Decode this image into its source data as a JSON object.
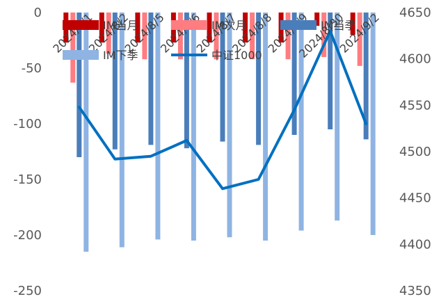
{
  "chart_data": {
    "type": "bar",
    "categories": [
      "2024/8/1",
      "2024/8/2",
      "2024/8/5",
      "2024/8/6",
      "2024/8/7",
      "2024/8/8",
      "2024/8/9",
      "2024/8/30",
      "2024/9/2"
    ],
    "y_left": {
      "ylim": [
        -250,
        0
      ],
      "ticks": [
        0,
        -50,
        -100,
        -150,
        -200,
        -250
      ],
      "tick_labels": [
        "0",
        "-50",
        "-100",
        "-150",
        "-200",
        "-250"
      ]
    },
    "y_right": {
      "ylim": [
        4350,
        4650
      ],
      "ticks": [
        4650,
        4600,
        4550,
        4500,
        4450,
        4400,
        4350
      ],
      "tick_labels": [
        "4650",
        "4600",
        "4550",
        "4500",
        "4450",
        "4400",
        "4350"
      ]
    },
    "series": [
      {
        "name": "IM当月",
        "kind": "bar",
        "axis": "left",
        "color": "#c00000",
        "values": [
          -27,
          -27,
          -27,
          -27,
          -27,
          -27,
          -27,
          -12,
          -20
        ]
      },
      {
        "name": "IM次月",
        "kind": "bar",
        "axis": "left",
        "color": "#ff7c80",
        "values": [
          -63,
          -37,
          -42,
          -42,
          -42,
          -42,
          -42,
          -40,
          -48
        ]
      },
      {
        "name": "IM当季",
        "kind": "bar",
        "axis": "left",
        "color": "#4a7ebb",
        "values": [
          -130,
          -123,
          -119,
          -122,
          -116,
          -119,
          -110,
          -105,
          -114
        ]
      },
      {
        "name": "IM下季",
        "kind": "bar",
        "axis": "left",
        "color": "#8fb4e3",
        "values": [
          -215,
          -211,
          -204,
          -205,
          -202,
          -205,
          -196,
          -187,
          -200
        ]
      },
      {
        "name": "中证1000",
        "kind": "line",
        "axis": "right",
        "color": "#0070c0",
        "values": [
          4548,
          4492,
          4495,
          4512,
          4460,
          4470,
          4545,
          4630,
          4530
        ]
      }
    ],
    "legend": {
      "placement": "top",
      "entries": [
        "IM当月",
        "IM次月",
        "IM当季",
        "IM下季",
        "中证1000"
      ]
    },
    "grid": false
  }
}
